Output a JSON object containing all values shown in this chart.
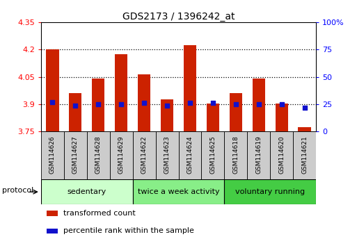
{
  "title": "GDS2173 / 1396242_at",
  "categories": [
    "GSM114626",
    "GSM114627",
    "GSM114628",
    "GSM114629",
    "GSM114622",
    "GSM114623",
    "GSM114624",
    "GSM114625",
    "GSM114618",
    "GSM114619",
    "GSM114620",
    "GSM114621"
  ],
  "red_values": [
    4.2,
    3.96,
    4.04,
    4.175,
    4.065,
    3.925,
    4.225,
    3.905,
    3.96,
    4.04,
    3.905,
    3.775
  ],
  "blue_values": [
    27,
    24,
    25,
    25,
    26,
    24,
    26,
    26,
    25,
    25,
    25,
    22
  ],
  "groups": [
    {
      "label": "sedentary",
      "start": 0,
      "end": 4,
      "color": "#ccffcc"
    },
    {
      "label": "twice a week activity",
      "start": 4,
      "end": 8,
      "color": "#88ee88"
    },
    {
      "label": "voluntary running",
      "start": 8,
      "end": 12,
      "color": "#44cc44"
    }
  ],
  "ylim_left": [
    3.75,
    4.35
  ],
  "ylim_right": [
    0,
    100
  ],
  "yticks_left": [
    3.75,
    3.9,
    4.05,
    4.2,
    4.35
  ],
  "yticks_right": [
    0,
    25,
    50,
    75,
    100
  ],
  "ytick_labels_left": [
    "3.75",
    "3.9",
    "4.05",
    "4.2",
    "4.35"
  ],
  "ytick_labels_right": [
    "0",
    "25",
    "50",
    "75",
    "100%"
  ],
  "hlines": [
    3.9,
    4.05,
    4.2
  ],
  "bar_color": "#cc2200",
  "dot_color": "#1111cc",
  "bar_bottom": 3.75,
  "protocol_label": "protocol",
  "legend_items": [
    {
      "color": "#cc2200",
      "label": "transformed count"
    },
    {
      "color": "#1111cc",
      "label": "percentile rank within the sample"
    }
  ],
  "bar_width": 0.55,
  "xtick_box_color": "#cccccc",
  "fig_bg": "#ffffff"
}
